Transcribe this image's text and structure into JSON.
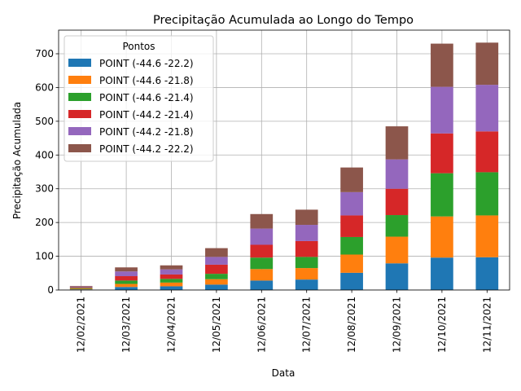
{
  "chart_data": {
    "type": "bar",
    "stacked": true,
    "title": "Precipitação Acumulada ao Longo do Tempo",
    "xlabel": "Data",
    "ylabel": "Precipitação Acumulada",
    "ylim": [
      0,
      770
    ],
    "yticks": [
      0,
      100,
      200,
      300,
      400,
      500,
      600,
      700
    ],
    "grid": true,
    "legend_title": "Pontos",
    "legend_position": "top-left",
    "categories": [
      "12/02/2021",
      "12/03/2021",
      "12/04/2021",
      "12/05/2021",
      "12/06/2021",
      "12/07/2021",
      "12/08/2021",
      "12/09/2021",
      "12/10/2021",
      "12/11/2021"
    ],
    "series": [
      {
        "name": "POINT (-44.6 -22.2)",
        "color": "#1f77b4",
        "values": [
          2,
          9,
          11,
          16,
          28,
          31,
          51,
          79,
          96,
          97
        ]
      },
      {
        "name": "POINT (-44.6 -21.8)",
        "color": "#ff7f0e",
        "values": [
          2,
          9,
          11,
          16,
          34,
          34,
          54,
          79,
          122,
          124
        ]
      },
      {
        "name": "POINT (-44.6 -21.4)",
        "color": "#2ca02c",
        "values": [
          2,
          10,
          11,
          16,
          34,
          33,
          52,
          64,
          128,
          128
        ]
      },
      {
        "name": "POINT (-44.2 -21.4)",
        "color": "#d62728",
        "values": [
          2,
          13,
          13,
          27,
          38,
          47,
          64,
          78,
          118,
          121
        ]
      },
      {
        "name": "POINT (-44.2 -21.8)",
        "color": "#9467bd",
        "values": [
          2,
          14,
          15,
          23,
          48,
          48,
          69,
          87,
          138,
          138
        ]
      },
      {
        "name": "POINT (-44.2 -22.2)",
        "color": "#8c564b",
        "values": [
          2,
          12,
          12,
          26,
          43,
          45,
          73,
          98,
          128,
          125
        ]
      }
    ]
  }
}
